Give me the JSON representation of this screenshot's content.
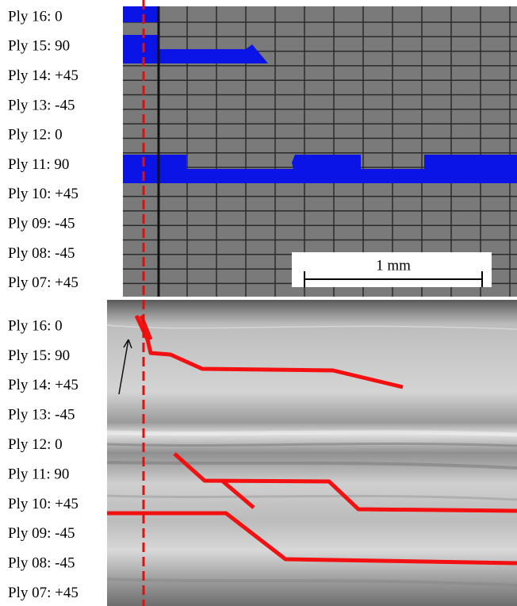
{
  "top_panel": {
    "ply_labels": [
      "Ply 16: 0",
      "Ply 15: 90",
      "Ply 14: +45",
      "Ply 13: -45",
      "Ply 12: 0",
      "Ply 11: 90",
      "Ply 10: +45",
      "Ply 09: -45",
      "Ply 08: -45",
      "Ply 07: +45"
    ],
    "scale_bar": "1 mm"
  },
  "bottom_panel": {
    "ply_labels": [
      "Ply 16: 0",
      "Ply 15: 90",
      "Ply 14: +45",
      "Ply 13: -45",
      "Ply 12: 0",
      "Ply 11: 90",
      "Ply 10: +45",
      "Ply 09: -45",
      "Ply 08: -45",
      "Ply 07: +45"
    ]
  }
}
